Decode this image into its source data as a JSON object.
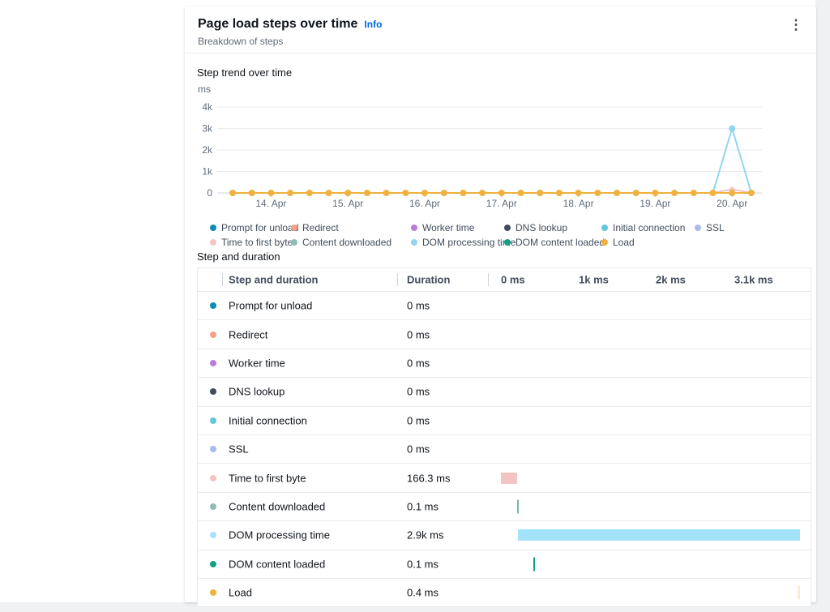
{
  "widget": {
    "title": "Page load steps over time",
    "info_label": "Info",
    "subtitle": "Breakdown of steps",
    "menu_icon": "⋮"
  },
  "chart_data": {
    "type": "line",
    "title": "Step trend over time",
    "y_unit": "ms",
    "ylim": [
      0,
      4000
    ],
    "grid": true,
    "legend_position": "bottom",
    "yticks": [
      {
        "v": 0,
        "l": "0"
      },
      {
        "v": 1000,
        "l": "1k"
      },
      {
        "v": 2000,
        "l": "2k"
      },
      {
        "v": 3000,
        "l": "3k"
      },
      {
        "v": 4000,
        "l": "4k"
      }
    ],
    "num_points": 28,
    "x_tick_labels": [
      "14. Apr",
      "15. Apr",
      "16. Apr",
      "17. Apr",
      "18. Apr",
      "19. Apr",
      "20. Apr"
    ],
    "x_tick_indices": [
      2,
      6,
      10,
      14,
      18,
      22,
      26
    ],
    "series": [
      {
        "name": "Prompt for unload",
        "color": "#0e8cb3",
        "values": [
          0,
          0,
          0,
          0,
          0,
          0,
          0,
          0,
          0,
          0,
          0,
          0,
          0,
          0,
          0,
          0,
          0,
          0,
          0,
          0,
          0,
          0,
          0,
          0,
          0,
          0,
          0,
          0
        ]
      },
      {
        "name": "Redirect",
        "color": "#f5a183",
        "values": [
          0,
          0,
          0,
          0,
          0,
          0,
          0,
          0,
          0,
          0,
          0,
          0,
          0,
          0,
          0,
          0,
          0,
          0,
          0,
          0,
          0,
          0,
          0,
          0,
          0,
          0,
          0,
          0
        ]
      },
      {
        "name": "Worker time",
        "color": "#bb7bdd",
        "values": [
          0,
          0,
          0,
          0,
          0,
          0,
          0,
          0,
          0,
          0,
          0,
          0,
          0,
          0,
          0,
          0,
          0,
          0,
          0,
          0,
          0,
          0,
          0,
          0,
          0,
          0,
          0,
          0
        ]
      },
      {
        "name": "DNS lookup",
        "color": "#414d5c",
        "values": [
          0,
          0,
          0,
          0,
          0,
          0,
          0,
          0,
          0,
          0,
          0,
          0,
          0,
          0,
          0,
          0,
          0,
          0,
          0,
          0,
          0,
          0,
          0,
          0,
          0,
          0,
          0,
          0
        ]
      },
      {
        "name": "Initial connection",
        "color": "#66c5e0",
        "values": [
          0,
          0,
          0,
          0,
          0,
          0,
          0,
          0,
          0,
          0,
          0,
          0,
          0,
          0,
          0,
          0,
          0,
          0,
          0,
          0,
          0,
          0,
          0,
          0,
          0,
          0,
          0,
          0
        ]
      },
      {
        "name": "SSL",
        "color": "#adbaec",
        "values": [
          0,
          0,
          0,
          0,
          0,
          0,
          0,
          0,
          0,
          0,
          0,
          0,
          0,
          0,
          0,
          0,
          0,
          0,
          0,
          0,
          0,
          0,
          0,
          0,
          0,
          0,
          0,
          0
        ]
      },
      {
        "name": "Time to first byte",
        "color": "#f2c5c5",
        "values": [
          0,
          0,
          0,
          0,
          0,
          0,
          0,
          0,
          0,
          0,
          0,
          0,
          0,
          0,
          0,
          0,
          0,
          0,
          0,
          0,
          0,
          0,
          0,
          0,
          0,
          0,
          170,
          0
        ]
      },
      {
        "name": "Content downloaded",
        "color": "#90bcb5",
        "values": [
          0,
          0,
          0,
          0,
          0,
          0,
          0,
          0,
          0,
          0,
          0,
          0,
          0,
          0,
          0,
          0,
          0,
          0,
          0,
          0,
          0,
          0,
          0,
          0,
          0,
          0,
          0,
          0
        ]
      },
      {
        "name": "DOM processing time",
        "color": "#8fd6f3",
        "values": [
          0,
          0,
          0,
          0,
          0,
          0,
          0,
          0,
          0,
          0,
          0,
          0,
          0,
          0,
          0,
          0,
          0,
          0,
          0,
          0,
          0,
          0,
          0,
          0,
          0,
          0,
          3000,
          0
        ]
      },
      {
        "name": "DOM content loaded",
        "color": "#0fa284",
        "values": [
          0,
          0,
          0,
          0,
          0,
          0,
          0,
          0,
          0,
          0,
          0,
          0,
          0,
          0,
          0,
          0,
          0,
          0,
          0,
          0,
          0,
          0,
          0,
          0,
          0,
          0,
          0,
          0
        ]
      },
      {
        "name": "Load",
        "color": "#f0b13f",
        "values": [
          0,
          0,
          0,
          0,
          0,
          0,
          0,
          0,
          0,
          0,
          0,
          0,
          0,
          0,
          0,
          0,
          0,
          0,
          0,
          0,
          0,
          0,
          0,
          0,
          0,
          0,
          0,
          0
        ]
      }
    ]
  },
  "table_section_title": "Step and duration",
  "table": {
    "columns": [
      "Step and duration",
      "Duration",
      "0 ms",
      "1k ms",
      "2k ms",
      "3.1k ms"
    ],
    "axis_max_ms": 3100,
    "rows": [
      {
        "step": "Prompt for unload",
        "duration": "0 ms",
        "duration_ms": 0,
        "bar_start_ms": 0,
        "color": "#0e8cb3",
        "bar_color": "#0e8cb3"
      },
      {
        "step": "Redirect",
        "duration": "0 ms",
        "duration_ms": 0,
        "bar_start_ms": 0,
        "color": "#f5a183",
        "bar_color": "#f5a183"
      },
      {
        "step": "Worker time",
        "duration": "0 ms",
        "duration_ms": 0,
        "bar_start_ms": 0,
        "color": "#bb7bdd",
        "bar_color": "#bb7bdd"
      },
      {
        "step": "DNS lookup",
        "duration": "0 ms",
        "duration_ms": 0,
        "bar_start_ms": 0,
        "color": "#414d5c",
        "bar_color": "#414d5c"
      },
      {
        "step": "Initial connection",
        "duration": "0 ms",
        "duration_ms": 0,
        "bar_start_ms": 0,
        "color": "#66c5e0",
        "bar_color": "#66c5e0"
      },
      {
        "step": "SSL",
        "duration": "0 ms",
        "duration_ms": 0,
        "bar_start_ms": 0,
        "color": "#adbaec",
        "bar_color": "#adbaec"
      },
      {
        "step": "Time to first byte",
        "duration": "166.3 ms",
        "duration_ms": 166.3,
        "bar_start_ms": 0,
        "color": "#f2c5c5",
        "bar_color": "#f4c3c3"
      },
      {
        "step": "Content downloaded",
        "duration": "0.1 ms",
        "duration_ms": 0.1,
        "bar_start_ms": 166.3,
        "color": "#90bcb5",
        "bar_color": "#79b5ac"
      },
      {
        "step": "DOM processing time",
        "duration": "2.9k ms",
        "duration_ms": 2900,
        "bar_start_ms": 175,
        "color": "#a9e2f8",
        "bar_color": "#a3e3fa"
      },
      {
        "step": "DOM content loaded",
        "duration": "0.1 ms",
        "duration_ms": 0.1,
        "bar_start_ms": 333,
        "color": "#0fa284",
        "bar_color": "#0fa284"
      },
      {
        "step": "Load",
        "duration": "0.4 ms",
        "duration_ms": 0.4,
        "bar_start_ms": 3050,
        "color": "#f0b13f",
        "bar_color": "#f8ecd2"
      }
    ]
  }
}
